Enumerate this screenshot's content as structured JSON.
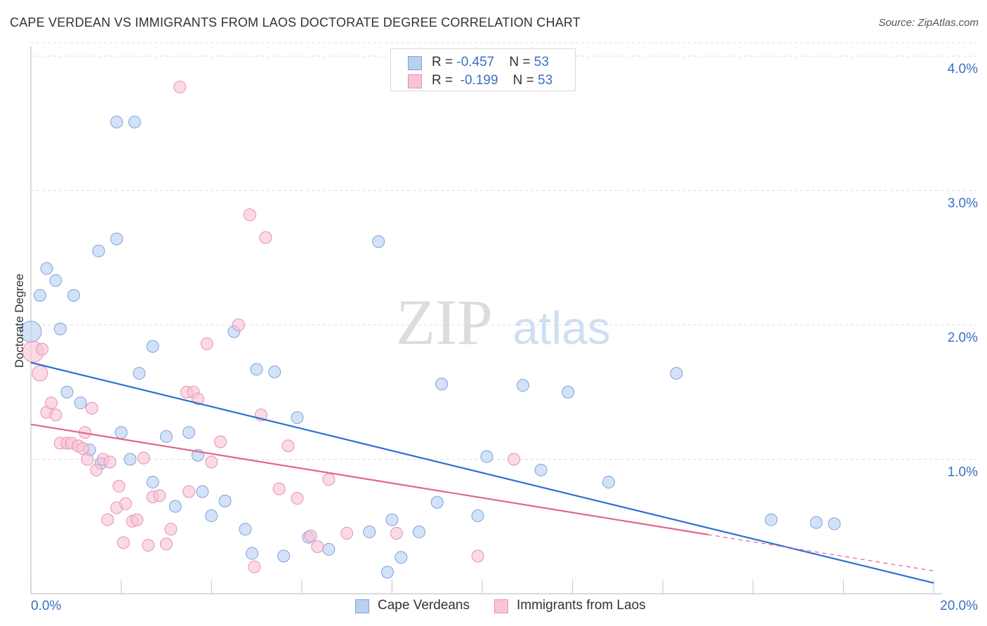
{
  "title": "CAPE VERDEAN VS IMMIGRANTS FROM LAOS DOCTORATE DEGREE CORRELATION CHART",
  "source": "Source: ZipAtlas.com",
  "watermark": {
    "zip": "ZIP",
    "atlas": "atlas"
  },
  "colors": {
    "blue_fill": "#b8d1f0",
    "blue_stroke": "#7aa3dc",
    "blue_line": "#2e6fd0",
    "pink_fill": "#f7c5d5",
    "pink_stroke": "#e98fae",
    "pink_line": "#e0668e",
    "axis_label": "#3a6fc4",
    "grid": "#dddddd"
  },
  "legend_top": {
    "rows": [
      {
        "r_label": "R = ",
        "r_value": "-0.457",
        "n_label": "N = ",
        "n_value": "53"
      },
      {
        "r_label": "R = ",
        "r_value": " -0.199",
        "n_label": "N = ",
        "n_value": "53"
      }
    ]
  },
  "legend_bottom": {
    "series1": "Cape Verdeans",
    "series2": "Immigrants from Laos"
  },
  "chart_data": {
    "type": "scatter",
    "title": "CAPE VERDEAN VS IMMIGRANTS FROM LAOS DOCTORATE DEGREE CORRELATION CHART",
    "xlabel": "",
    "ylabel": "Doctorate Degree",
    "xlim": [
      0,
      20
    ],
    "ylim": [
      0,
      4.1
    ],
    "x_tick_labels": [
      "0.0%",
      "20.0%"
    ],
    "y_ticks": [
      1.0,
      2.0,
      3.0,
      4.0
    ],
    "y_tick_labels": [
      "1.0%",
      "2.0%",
      "3.0%",
      "4.0%"
    ],
    "grid": true,
    "legend_position": "top-center",
    "series": [
      {
        "name": "Cape Verdeans",
        "r": -0.457,
        "n": 53,
        "trend": {
          "x": [
            0,
            20
          ],
          "y": [
            1.72,
            0.08
          ]
        },
        "points": [
          [
            0.0,
            1.95
          ],
          [
            0.2,
            2.22
          ],
          [
            0.35,
            2.42
          ],
          [
            0.55,
            2.33
          ],
          [
            0.65,
            1.97
          ],
          [
            0.95,
            2.22
          ],
          [
            1.5,
            2.55
          ],
          [
            1.9,
            2.64
          ],
          [
            1.9,
            3.51
          ],
          [
            2.3,
            3.51
          ],
          [
            0.8,
            1.5
          ],
          [
            1.1,
            1.42
          ],
          [
            1.3,
            1.07
          ],
          [
            1.55,
            0.97
          ],
          [
            2.0,
            1.2
          ],
          [
            2.2,
            1.0
          ],
          [
            2.4,
            1.64
          ],
          [
            2.7,
            1.84
          ],
          [
            2.7,
            0.83
          ],
          [
            3.0,
            1.17
          ],
          [
            3.2,
            0.65
          ],
          [
            3.5,
            1.2
          ],
          [
            3.7,
            1.03
          ],
          [
            3.8,
            0.76
          ],
          [
            4.0,
            0.58
          ],
          [
            4.3,
            0.69
          ],
          [
            4.5,
            1.95
          ],
          [
            4.75,
            0.48
          ],
          [
            4.9,
            0.3
          ],
          [
            5.0,
            1.67
          ],
          [
            5.4,
            1.65
          ],
          [
            5.6,
            0.28
          ],
          [
            5.9,
            1.31
          ],
          [
            6.15,
            0.42
          ],
          [
            6.6,
            0.33
          ],
          [
            7.5,
            0.46
          ],
          [
            7.7,
            2.62
          ],
          [
            7.9,
            0.16
          ],
          [
            8.0,
            0.55
          ],
          [
            8.2,
            0.27
          ],
          [
            8.6,
            0.46
          ],
          [
            9.0,
            0.68
          ],
          [
            9.1,
            1.56
          ],
          [
            9.9,
            0.58
          ],
          [
            10.1,
            1.02
          ],
          [
            10.9,
            1.55
          ],
          [
            11.3,
            0.92
          ],
          [
            11.9,
            1.5
          ],
          [
            12.8,
            0.83
          ],
          [
            14.3,
            1.64
          ],
          [
            16.4,
            0.55
          ],
          [
            17.4,
            0.53
          ],
          [
            17.8,
            0.52
          ]
        ]
      },
      {
        "name": "Immigrants from Laos",
        "r": -0.199,
        "n": 53,
        "trend": {
          "x": [
            0,
            15
          ],
          "y": [
            1.26,
            0.44
          ]
        },
        "trend_dashed": {
          "x": [
            15,
            20
          ],
          "y": [
            0.44,
            0.17
          ]
        },
        "points": [
          [
            0.05,
            1.8
          ],
          [
            0.2,
            1.64
          ],
          [
            0.25,
            1.82
          ],
          [
            0.35,
            1.35
          ],
          [
            0.45,
            1.42
          ],
          [
            0.55,
            1.33
          ],
          [
            0.65,
            1.12
          ],
          [
            0.8,
            1.12
          ],
          [
            0.9,
            1.12
          ],
          [
            1.05,
            1.1
          ],
          [
            1.15,
            1.08
          ],
          [
            1.2,
            1.2
          ],
          [
            1.25,
            1.0
          ],
          [
            1.35,
            1.38
          ],
          [
            1.45,
            0.92
          ],
          [
            1.6,
            1.0
          ],
          [
            1.7,
            0.55
          ],
          [
            1.75,
            0.98
          ],
          [
            1.9,
            0.64
          ],
          [
            1.95,
            0.8
          ],
          [
            2.05,
            0.38
          ],
          [
            2.1,
            0.67
          ],
          [
            2.25,
            0.54
          ],
          [
            2.35,
            0.55
          ],
          [
            2.5,
            1.01
          ],
          [
            2.6,
            0.36
          ],
          [
            2.7,
            0.72
          ],
          [
            2.85,
            0.73
          ],
          [
            3.0,
            0.37
          ],
          [
            3.1,
            0.48
          ],
          [
            3.3,
            3.77
          ],
          [
            3.45,
            1.5
          ],
          [
            3.5,
            0.76
          ],
          [
            3.6,
            1.5
          ],
          [
            3.7,
            1.45
          ],
          [
            3.9,
            1.86
          ],
          [
            4.0,
            0.98
          ],
          [
            4.2,
            1.13
          ],
          [
            4.6,
            2.0
          ],
          [
            4.85,
            2.82
          ],
          [
            4.95,
            0.2
          ],
          [
            5.1,
            1.33
          ],
          [
            5.2,
            2.65
          ],
          [
            5.5,
            0.78
          ],
          [
            5.7,
            1.1
          ],
          [
            5.9,
            0.71
          ],
          [
            6.2,
            0.43
          ],
          [
            6.35,
            0.35
          ],
          [
            6.6,
            0.85
          ],
          [
            7.0,
            0.45
          ],
          [
            8.1,
            0.45
          ],
          [
            9.9,
            0.28
          ],
          [
            10.7,
            1.0
          ]
        ]
      }
    ]
  }
}
